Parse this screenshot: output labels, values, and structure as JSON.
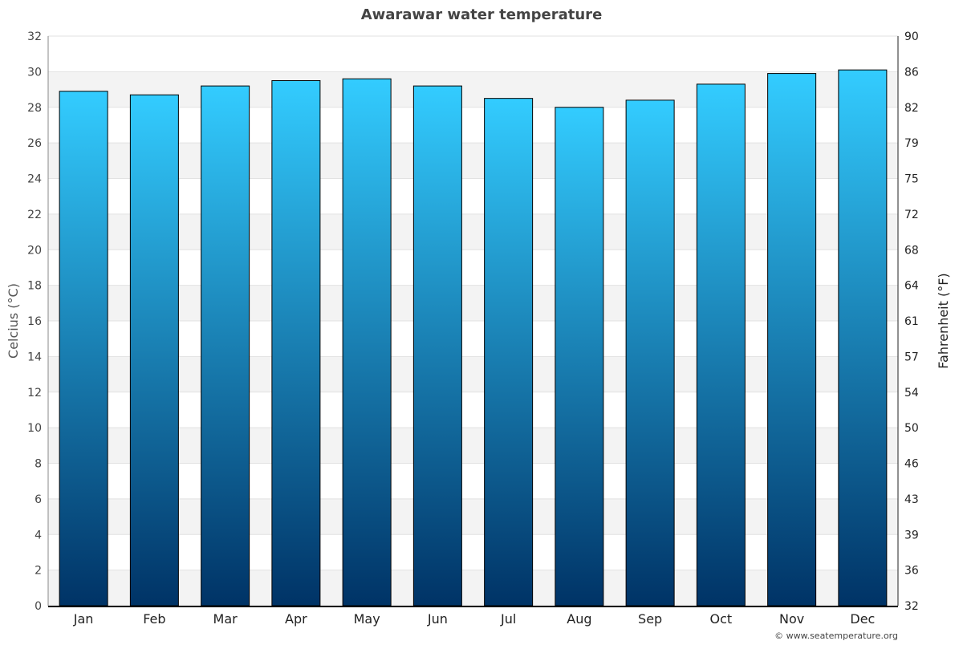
{
  "chart_data": {
    "type": "bar",
    "title": "Awarawar water temperature",
    "categories": [
      "Jan",
      "Feb",
      "Mar",
      "Apr",
      "May",
      "Jun",
      "Jul",
      "Aug",
      "Sep",
      "Oct",
      "Nov",
      "Dec"
    ],
    "values": [
      28.9,
      28.7,
      29.2,
      29.5,
      29.6,
      29.2,
      28.5,
      28.0,
      28.4,
      29.3,
      29.9,
      30.1
    ],
    "ylabel": "Celcius (°C)",
    "ylabel_right": "Fahrenheit (°F)",
    "ylim": [
      0,
      32
    ],
    "yticks": [
      "0",
      "2",
      "4",
      "6",
      "8",
      "10",
      "12",
      "14",
      "16",
      "18",
      "20",
      "22",
      "24",
      "26",
      "28",
      "30",
      "32"
    ],
    "yticks_right": [
      "32",
      "36",
      "39",
      "43",
      "46",
      "50",
      "54",
      "57",
      "61",
      "64",
      "68",
      "72",
      "75",
      "79",
      "82",
      "86",
      "90"
    ],
    "grid": true,
    "bar_gradient": [
      "#33ccff",
      "#003366"
    ]
  },
  "credit": "© www.seatemperature.org"
}
